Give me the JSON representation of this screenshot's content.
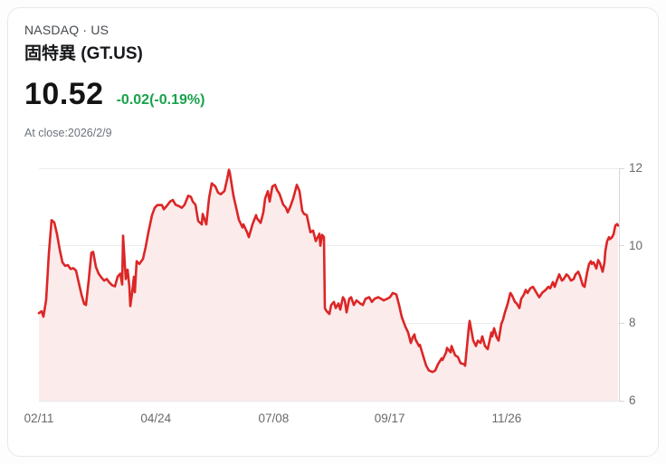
{
  "header": {
    "exchange": "NASDAQ · US",
    "name": "固特異 (GT.US)"
  },
  "quote": {
    "price": "10.52",
    "change": "-0.02(-0.19%)",
    "change_color": "#17a34a",
    "as_of": "At close:2026/2/9"
  },
  "chart_data": {
    "type": "area",
    "ylim": [
      6,
      12
    ],
    "y_ticks": [
      12,
      10,
      8,
      6
    ],
    "x_ticks": [
      {
        "label": "02/11",
        "f": 0.0
      },
      {
        "label": "04/24",
        "f": 0.2016
      },
      {
        "label": "07/08",
        "f": 0.4047
      },
      {
        "label": "09/17",
        "f": 0.6047
      },
      {
        "label": "11/26",
        "f": 0.8063
      }
    ],
    "line_color": "#dc2626",
    "fill_color": "#fcebeb",
    "grid_color": "#ececec",
    "axis_color": "#d7d7d7",
    "points": [
      [
        0,
        8.26
      ],
      [
        3,
        8.31
      ],
      [
        5,
        8.17
      ],
      [
        8,
        8.6
      ],
      [
        11,
        9.8
      ],
      [
        14,
        10.66
      ],
      [
        17,
        10.6
      ],
      [
        20,
        10.3
      ],
      [
        23,
        9.9
      ],
      [
        26,
        9.57
      ],
      [
        29,
        9.48
      ],
      [
        32,
        9.5
      ],
      [
        35,
        9.4
      ],
      [
        38,
        9.42
      ],
      [
        41,
        9.36
      ],
      [
        44,
        9.05
      ],
      [
        47,
        8.74
      ],
      [
        50,
        8.5
      ],
      [
        52,
        8.47
      ],
      [
        55,
        9.1
      ],
      [
        58,
        9.82
      ],
      [
        60,
        9.84
      ],
      [
        63,
        9.45
      ],
      [
        66,
        9.28
      ],
      [
        69,
        9.18
      ],
      [
        72,
        9.1
      ],
      [
        75,
        9.14
      ],
      [
        78,
        9.05
      ],
      [
        81,
        8.98
      ],
      [
        84,
        8.95
      ],
      [
        87,
        9.2
      ],
      [
        90,
        9.28
      ],
      [
        92,
        9.0
      ],
      [
        93,
        10.26
      ],
      [
        95,
        9.5
      ],
      [
        96,
        9.14
      ],
      [
        98,
        9.38
      ],
      [
        100,
        8.94
      ],
      [
        101,
        8.44
      ],
      [
        103,
        8.78
      ],
      [
        105,
        9.2
      ],
      [
        106,
        8.8
      ],
      [
        108,
        9.6
      ],
      [
        111,
        9.53
      ],
      [
        115,
        9.66
      ],
      [
        118,
        9.97
      ],
      [
        121,
        10.35
      ],
      [
        125,
        10.79
      ],
      [
        128,
        10.98
      ],
      [
        131,
        11.05
      ],
      [
        136,
        11.05
      ],
      [
        138,
        10.94
      ],
      [
        141,
        11.02
      ],
      [
        145,
        11.14
      ],
      [
        148,
        11.18
      ],
      [
        151,
        11.06
      ],
      [
        155,
        11.02
      ],
      [
        158,
        10.98
      ],
      [
        161,
        11.06
      ],
      [
        165,
        11.29
      ],
      [
        168,
        11.26
      ],
      [
        170,
        11.14
      ],
      [
        173,
        11.06
      ],
      [
        176,
        10.64
      ],
      [
        180,
        10.55
      ],
      [
        181,
        10.82
      ],
      [
        185,
        10.55
      ],
      [
        188,
        11.22
      ],
      [
        191,
        11.61
      ],
      [
        195,
        11.53
      ],
      [
        198,
        11.37
      ],
      [
        201,
        11.33
      ],
      [
        205,
        11.41
      ],
      [
        208,
        11.72
      ],
      [
        210,
        11.96
      ],
      [
        211,
        11.88
      ],
      [
        215,
        11.29
      ],
      [
        218,
        10.98
      ],
      [
        221,
        10.67
      ],
      [
        225,
        10.47
      ],
      [
        226,
        10.55
      ],
      [
        230,
        10.35
      ],
      [
        232,
        10.22
      ],
      [
        236,
        10.55
      ],
      [
        240,
        10.79
      ],
      [
        241,
        10.71
      ],
      [
        245,
        10.59
      ],
      [
        248,
        10.86
      ],
      [
        250,
        11.22
      ],
      [
        253,
        11.41
      ],
      [
        255,
        11.14
      ],
      [
        258,
        11.53
      ],
      [
        261,
        11.57
      ],
      [
        263,
        11.45
      ],
      [
        266,
        11.33
      ],
      [
        270,
        11.06
      ],
      [
        273,
        10.98
      ],
      [
        275,
        10.86
      ],
      [
        278,
        11.02
      ],
      [
        281,
        11.22
      ],
      [
        285,
        11.57
      ],
      [
        288,
        11.41
      ],
      [
        291,
        10.9
      ],
      [
        293,
        10.82
      ],
      [
        296,
        10.79
      ],
      [
        300,
        10.35
      ],
      [
        303,
        10.39
      ],
      [
        306,
        10.12
      ],
      [
        310,
        10.31
      ],
      [
        311,
        10.0
      ],
      [
        313,
        10.28
      ],
      [
        315,
        10.22
      ],
      [
        316,
        8.39
      ],
      [
        318,
        8.31
      ],
      [
        321,
        8.24
      ],
      [
        323,
        8.47
      ],
      [
        326,
        8.55
      ],
      [
        328,
        8.39
      ],
      [
        331,
        8.51
      ],
      [
        333,
        8.35
      ],
      [
        336,
        8.67
      ],
      [
        338,
        8.59
      ],
      [
        340,
        8.28
      ],
      [
        343,
        8.63
      ],
      [
        345,
        8.67
      ],
      [
        348,
        8.47
      ],
      [
        351,
        8.59
      ],
      [
        355,
        8.51
      ],
      [
        358,
        8.47
      ],
      [
        361,
        8.63
      ],
      [
        365,
        8.67
      ],
      [
        368,
        8.55
      ],
      [
        371,
        8.63
      ],
      [
        375,
        8.67
      ],
      [
        378,
        8.63
      ],
      [
        381,
        8.59
      ],
      [
        385,
        8.63
      ],
      [
        388,
        8.67
      ],
      [
        391,
        8.78
      ],
      [
        395,
        8.74
      ],
      [
        398,
        8.47
      ],
      [
        401,
        8.16
      ],
      [
        405,
        7.91
      ],
      [
        408,
        7.76
      ],
      [
        411,
        7.49
      ],
      [
        413,
        7.63
      ],
      [
        415,
        7.71
      ],
      [
        416,
        7.59
      ],
      [
        420,
        7.41
      ],
      [
        421,
        7.44
      ],
      [
        425,
        7.13
      ],
      [
        428,
        6.9
      ],
      [
        431,
        6.78
      ],
      [
        435,
        6.74
      ],
      [
        438,
        6.78
      ],
      [
        441,
        6.94
      ],
      [
        445,
        7.09
      ],
      [
        446,
        7.05
      ],
      [
        450,
        7.25
      ],
      [
        451,
        7.36
      ],
      [
        455,
        7.25
      ],
      [
        456,
        7.41
      ],
      [
        460,
        7.17
      ],
      [
        463,
        7.13
      ],
      [
        466,
        6.97
      ],
      [
        470,
        6.94
      ],
      [
        471,
        6.9
      ],
      [
        475,
        7.87
      ],
      [
        476,
        8.06
      ],
      [
        480,
        7.55
      ],
      [
        483,
        7.41
      ],
      [
        485,
        7.55
      ],
      [
        488,
        7.49
      ],
      [
        490,
        7.66
      ],
      [
        493,
        7.41
      ],
      [
        496,
        7.33
      ],
      [
        500,
        7.76
      ],
      [
        501,
        7.66
      ],
      [
        503,
        7.87
      ],
      [
        506,
        7.63
      ],
      [
        508,
        7.55
      ],
      [
        511,
        7.98
      ],
      [
        513,
        8.1
      ],
      [
        515,
        8.28
      ],
      [
        516,
        8.35
      ],
      [
        518,
        8.5
      ],
      [
        521,
        8.78
      ],
      [
        523,
        8.71
      ],
      [
        526,
        8.55
      ],
      [
        528,
        8.51
      ],
      [
        531,
        8.39
      ],
      [
        533,
        8.63
      ],
      [
        536,
        8.74
      ],
      [
        538,
        8.86
      ],
      [
        540,
        8.78
      ],
      [
        543,
        8.9
      ],
      [
        546,
        8.94
      ],
      [
        548,
        8.86
      ],
      [
        551,
        8.74
      ],
      [
        553,
        8.67
      ],
      [
        556,
        8.78
      ],
      [
        560,
        8.86
      ],
      [
        563,
        8.94
      ],
      [
        565,
        8.9
      ],
      [
        568,
        9.06
      ],
      [
        570,
        8.94
      ],
      [
        573,
        9.14
      ],
      [
        575,
        9.26
      ],
      [
        578,
        9.1
      ],
      [
        580,
        9.14
      ],
      [
        583,
        9.26
      ],
      [
        585,
        9.22
      ],
      [
        588,
        9.1
      ],
      [
        591,
        9.14
      ],
      [
        593,
        9.26
      ],
      [
        596,
        9.33
      ],
      [
        598,
        9.22
      ],
      [
        601,
        8.98
      ],
      [
        603,
        8.94
      ],
      [
        606,
        9.33
      ],
      [
        608,
        9.53
      ],
      [
        610,
        9.6
      ],
      [
        611,
        9.53
      ],
      [
        613,
        9.57
      ],
      [
        616,
        9.41
      ],
      [
        618,
        9.63
      ],
      [
        620,
        9.55
      ],
      [
        623,
        9.33
      ],
      [
        625,
        9.57
      ],
      [
        626,
        9.87
      ],
      [
        628,
        10.12
      ],
      [
        630,
        10.22
      ],
      [
        631,
        10.17
      ],
      [
        633,
        10.21
      ],
      [
        635,
        10.29
      ],
      [
        637,
        10.52
      ],
      [
        639,
        10.56
      ],
      [
        640,
        10.52
      ]
    ]
  }
}
